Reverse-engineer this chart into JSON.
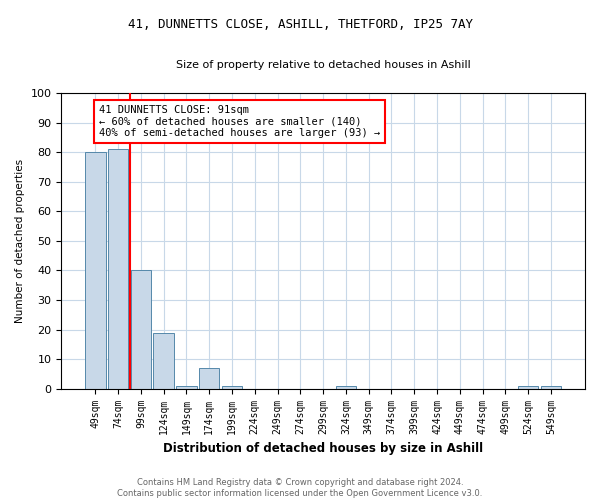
{
  "title1": "41, DUNNETTS CLOSE, ASHILL, THETFORD, IP25 7AY",
  "title2": "Size of property relative to detached houses in Ashill",
  "xlabel": "Distribution of detached houses by size in Ashill",
  "ylabel": "Number of detached properties",
  "categories": [
    "49sqm",
    "74sqm",
    "99sqm",
    "124sqm",
    "149sqm",
    "174sqm",
    "199sqm",
    "224sqm",
    "249sqm",
    "274sqm",
    "299sqm",
    "324sqm",
    "349sqm",
    "374sqm",
    "399sqm",
    "424sqm",
    "449sqm",
    "474sqm",
    "499sqm",
    "524sqm",
    "549sqm"
  ],
  "values": [
    80,
    81,
    40,
    19,
    1,
    7,
    1,
    0,
    0,
    0,
    0,
    1,
    0,
    0,
    0,
    0,
    0,
    0,
    0,
    1,
    1
  ],
  "bar_color": "#c8d8e8",
  "bar_edge_color": "#5588aa",
  "annotation_text": "41 DUNNETTS CLOSE: 91sqm\n← 60% of detached houses are smaller (140)\n40% of semi-detached houses are larger (93) →",
  "red_line_x": 1.5,
  "ylim": [
    0,
    100
  ],
  "yticks": [
    0,
    10,
    20,
    30,
    40,
    50,
    60,
    70,
    80,
    90,
    100
  ],
  "footer": "Contains HM Land Registry data © Crown copyright and database right 2024.\nContains public sector information licensed under the Open Government Licence v3.0.",
  "bg_color": "#ffffff",
  "grid_color": "#c8d8e8",
  "title1_fontsize": 9,
  "title2_fontsize": 8,
  "xlabel_fontsize": 8.5,
  "ylabel_fontsize": 7.5,
  "tick_fontsize": 7,
  "footer_fontsize": 6,
  "annotation_fontsize": 7.5
}
